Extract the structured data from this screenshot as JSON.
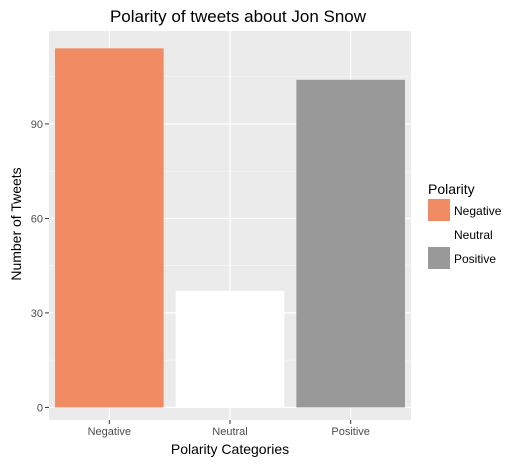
{
  "chart_data": {
    "type": "bar",
    "title": "Polarity of tweets about Jon Snow",
    "xlabel": "Polarity Categories",
    "ylabel": "Number of Tweets",
    "categories": [
      "Negative",
      "Neutral",
      "Positive"
    ],
    "values": [
      114,
      37,
      104
    ],
    "colors": [
      "#F08B63",
      "#FFFFFF",
      "#999999"
    ],
    "ylim": [
      -4,
      119.5
    ],
    "yticks": [
      0,
      30,
      60,
      90
    ],
    "grid": true,
    "panel_background": "#EBEBEB",
    "legend": {
      "title": "Polarity",
      "position": "right",
      "entries": [
        "Negative",
        "Neutral",
        "Positive"
      ]
    }
  }
}
